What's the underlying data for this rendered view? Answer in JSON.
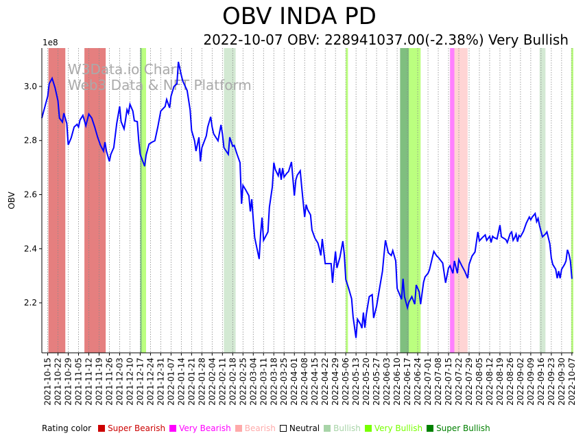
{
  "chart_data": {
    "type": "line",
    "title": "OBV INDA PD",
    "subtitle": "2022-10-07 OBV: 228941037.00(-2.38%) Very Bullish",
    "ylabel": "OBV",
    "y_multiplier_label": "1e8",
    "ylim": [
      2.015,
      3.142
    ],
    "y_ticks": [
      "2.2",
      "2.4",
      "2.6",
      "2.8",
      "3.0"
    ],
    "y_tick_values": [
      2.2,
      2.4,
      2.6,
      2.8,
      3.0
    ],
    "x_base_date": "2021-10-15",
    "x_day_range": [
      -4,
      358
    ],
    "x_ticks": [
      "2021-10-15",
      "2021-10-22",
      "2021-10-29",
      "2021-11-05",
      "2021-11-12",
      "2021-11-19",
      "2021-11-26",
      "2021-12-03",
      "2021-12-10",
      "2021-12-17",
      "2021-12-24",
      "2021-12-31",
      "2022-01-07",
      "2022-01-14",
      "2022-01-21",
      "2022-01-28",
      "2022-02-04",
      "2022-02-11",
      "2022-02-18",
      "2022-02-25",
      "2022-03-04",
      "2022-03-11",
      "2022-03-18",
      "2022-03-25",
      "2022-04-01",
      "2022-04-08",
      "2022-04-15",
      "2022-04-22",
      "2022-04-29",
      "2022-05-06",
      "2022-05-13",
      "2022-05-20",
      "2022-05-27",
      "2022-06-03",
      "2022-06-10",
      "2022-06-17",
      "2022-06-24",
      "2022-07-01",
      "2022-07-08",
      "2022-07-15",
      "2022-07-22",
      "2022-07-29",
      "2022-08-05",
      "2022-08-12",
      "2022-08-19",
      "2022-08-26",
      "2022-09-02",
      "2022-09-09",
      "2022-09-16",
      "2022-09-23",
      "2022-09-30",
      "2022-10-07"
    ],
    "grid": "vertical dotted",
    "series": [
      {
        "name": "OBV",
        "color": "#0000ff",
        "points": [
          [
            -4,
            2.883
          ],
          [
            0,
            2.964
          ],
          [
            1,
            3.01
          ],
          [
            3,
            3.03
          ],
          [
            5,
            2.995
          ],
          [
            7,
            2.947
          ],
          [
            8,
            2.883
          ],
          [
            10,
            2.868
          ],
          [
            11,
            2.901
          ],
          [
            13,
            2.863
          ],
          [
            14,
            2.784
          ],
          [
            16,
            2.81
          ],
          [
            18,
            2.85
          ],
          [
            20,
            2.86
          ],
          [
            21,
            2.85
          ],
          [
            22,
            2.876
          ],
          [
            24,
            2.893
          ],
          [
            26,
            2.855
          ],
          [
            28,
            2.898
          ],
          [
            30,
            2.883
          ],
          [
            32,
            2.85
          ],
          [
            34,
            2.812
          ],
          [
            36,
            2.782
          ],
          [
            38,
            2.761
          ],
          [
            39,
            2.794
          ],
          [
            40,
            2.761
          ],
          [
            42,
            2.723
          ],
          [
            43,
            2.749
          ],
          [
            45,
            2.774
          ],
          [
            47,
            2.863
          ],
          [
            49,
            2.926
          ],
          [
            50,
            2.87
          ],
          [
            52,
            2.843
          ],
          [
            53,
            2.876
          ],
          [
            54,
            2.914
          ],
          [
            55,
            2.901
          ],
          [
            56,
            2.934
          ],
          [
            58,
            2.909
          ],
          [
            59,
            2.873
          ],
          [
            61,
            2.87
          ],
          [
            62,
            2.799
          ],
          [
            63,
            2.749
          ],
          [
            66,
            2.705
          ],
          [
            67,
            2.746
          ],
          [
            69,
            2.787
          ],
          [
            71,
            2.794
          ],
          [
            73,
            2.799
          ],
          [
            75,
            2.85
          ],
          [
            77,
            2.909
          ],
          [
            80,
            2.926
          ],
          [
            81,
            2.952
          ],
          [
            83,
            2.921
          ],
          [
            84,
            2.964
          ],
          [
            86,
            3.0
          ],
          [
            88,
            3.01
          ],
          [
            89,
            3.091
          ],
          [
            91,
            3.041
          ],
          [
            92,
            3.02
          ],
          [
            95,
            2.985
          ],
          [
            97,
            2.914
          ],
          [
            98,
            2.837
          ],
          [
            100,
            2.799
          ],
          [
            101,
            2.761
          ],
          [
            103,
            2.812
          ],
          [
            104,
            2.723
          ],
          [
            105,
            2.774
          ],
          [
            108,
            2.817
          ],
          [
            109,
            2.85
          ],
          [
            111,
            2.888
          ],
          [
            112,
            2.85
          ],
          [
            113,
            2.825
          ],
          [
            116,
            2.799
          ],
          [
            118,
            2.858
          ],
          [
            119,
            2.825
          ],
          [
            120,
            2.774
          ],
          [
            123,
            2.749
          ],
          [
            124,
            2.812
          ],
          [
            126,
            2.779
          ],
          [
            127,
            2.782
          ],
          [
            129,
            2.749
          ],
          [
            131,
            2.718
          ],
          [
            132,
            2.566
          ],
          [
            133,
            2.634
          ],
          [
            135,
            2.616
          ],
          [
            137,
            2.596
          ],
          [
            138,
            2.538
          ],
          [
            139,
            2.583
          ],
          [
            140,
            2.507
          ],
          [
            141,
            2.441
          ],
          [
            144,
            2.362
          ],
          [
            145,
            2.456
          ],
          [
            146,
            2.515
          ],
          [
            147,
            2.431
          ],
          [
            150,
            2.462
          ],
          [
            151,
            2.553
          ],
          [
            153,
            2.629
          ],
          [
            154,
            2.718
          ],
          [
            155,
            2.693
          ],
          [
            157,
            2.67
          ],
          [
            158,
            2.698
          ],
          [
            159,
            2.655
          ],
          [
            160,
            2.698
          ],
          [
            161,
            2.665
          ],
          [
            163,
            2.68
          ],
          [
            164,
            2.685
          ],
          [
            166,
            2.721
          ],
          [
            168,
            2.596
          ],
          [
            169,
            2.655
          ],
          [
            170,
            2.672
          ],
          [
            172,
            2.688
          ],
          [
            173,
            2.629
          ],
          [
            175,
            2.517
          ],
          [
            176,
            2.563
          ],
          [
            177,
            2.545
          ],
          [
            179,
            2.525
          ],
          [
            180,
            2.469
          ],
          [
            182,
            2.439
          ],
          [
            184,
            2.421
          ],
          [
            185,
            2.401
          ],
          [
            186,
            2.375
          ],
          [
            187,
            2.436
          ],
          [
            189,
            2.345
          ],
          [
            191,
            2.345
          ],
          [
            193,
            2.345
          ],
          [
            194,
            2.274
          ],
          [
            195,
            2.337
          ],
          [
            196,
            2.39
          ],
          [
            197,
            2.329
          ],
          [
            199,
            2.368
          ],
          [
            201,
            2.428
          ],
          [
            202,
            2.38
          ],
          [
            203,
            2.286
          ],
          [
            205,
            2.253
          ],
          [
            207,
            2.215
          ],
          [
            208,
            2.147
          ],
          [
            210,
            2.07
          ],
          [
            211,
            2.139
          ],
          [
            213,
            2.121
          ],
          [
            214,
            2.106
          ],
          [
            215,
            2.164
          ],
          [
            216,
            2.108
          ],
          [
            217,
            2.157
          ],
          [
            219,
            2.223
          ],
          [
            221,
            2.23
          ],
          [
            222,
            2.144
          ],
          [
            224,
            2.187
          ],
          [
            226,
            2.253
          ],
          [
            228,
            2.317
          ],
          [
            229,
            2.375
          ],
          [
            230,
            2.431
          ],
          [
            232,
            2.385
          ],
          [
            234,
            2.375
          ],
          [
            235,
            2.393
          ],
          [
            237,
            2.355
          ],
          [
            238,
            2.253
          ],
          [
            241,
            2.213
          ],
          [
            242,
            2.289
          ],
          [
            243,
            2.223
          ],
          [
            245,
            2.182
          ],
          [
            246,
            2.202
          ],
          [
            248,
            2.223
          ],
          [
            250,
            2.195
          ],
          [
            251,
            2.266
          ],
          [
            253,
            2.241
          ],
          [
            254,
            2.195
          ],
          [
            256,
            2.276
          ],
          [
            257,
            2.296
          ],
          [
            259,
            2.309
          ],
          [
            260,
            2.322
          ],
          [
            262,
            2.368
          ],
          [
            263,
            2.39
          ],
          [
            265,
            2.373
          ],
          [
            266,
            2.368
          ],
          [
            269,
            2.347
          ],
          [
            271,
            2.274
          ],
          [
            273,
            2.329
          ],
          [
            274,
            2.337
          ],
          [
            276,
            2.309
          ],
          [
            277,
            2.355
          ],
          [
            279,
            2.309
          ],
          [
            280,
            2.36
          ],
          [
            282,
            2.337
          ],
          [
            284,
            2.317
          ],
          [
            286,
            2.291
          ],
          [
            287,
            2.342
          ],
          [
            289,
            2.373
          ],
          [
            291,
            2.388
          ],
          [
            293,
            2.462
          ],
          [
            294,
            2.429
          ],
          [
            296,
            2.441
          ],
          [
            298,
            2.451
          ],
          [
            299,
            2.431
          ],
          [
            301,
            2.446
          ],
          [
            302,
            2.423
          ],
          [
            303,
            2.446
          ],
          [
            304,
            2.441
          ],
          [
            306,
            2.436
          ],
          [
            308,
            2.487
          ],
          [
            309,
            2.444
          ],
          [
            312,
            2.434
          ],
          [
            313,
            2.423
          ],
          [
            315,
            2.456
          ],
          [
            316,
            2.462
          ],
          [
            317,
            2.431
          ],
          [
            318,
            2.441
          ],
          [
            319,
            2.454
          ],
          [
            320,
            2.426
          ],
          [
            321,
            2.449
          ],
          [
            322,
            2.444
          ],
          [
            324,
            2.464
          ],
          [
            326,
            2.495
          ],
          [
            328,
            2.517
          ],
          [
            329,
            2.507
          ],
          [
            330,
            2.517
          ],
          [
            332,
            2.53
          ],
          [
            333,
            2.5
          ],
          [
            334,
            2.512
          ],
          [
            335,
            2.484
          ],
          [
            337,
            2.444
          ],
          [
            339,
            2.454
          ],
          [
            340,
            2.462
          ],
          [
            342,
            2.418
          ],
          [
            343,
            2.365
          ],
          [
            344,
            2.342
          ],
          [
            346,
            2.324
          ],
          [
            347,
            2.291
          ],
          [
            348,
            2.317
          ],
          [
            349,
            2.291
          ],
          [
            350,
            2.324
          ],
          [
            352,
            2.342
          ],
          [
            353,
            2.355
          ],
          [
            354,
            2.396
          ],
          [
            355,
            2.38
          ],
          [
            356,
            2.355
          ],
          [
            357,
            2.289
          ]
        ]
      }
    ],
    "rating_bands": [
      {
        "rating": "Super Bearish",
        "from": 0.5,
        "to": 12
      },
      {
        "rating": "Super Bearish",
        "from": 25,
        "to": 39.5
      },
      {
        "rating": "Super Bullish",
        "from": 63,
        "to": 64
      },
      {
        "rating": "Very Bullish",
        "from": 64,
        "to": 67
      },
      {
        "rating": "Bullish",
        "from": 120,
        "to": 128
      },
      {
        "rating": "Very Bullish",
        "from": 203,
        "to": 204.5
      },
      {
        "rating": "Super Bullish",
        "from": 240,
        "to": 246
      },
      {
        "rating": "Very Bullish",
        "from": 246,
        "to": 254
      },
      {
        "rating": "Very Bearish",
        "from": 274,
        "to": 277
      },
      {
        "rating": "Bearish",
        "from": 277,
        "to": 286
      },
      {
        "rating": "Bullish",
        "from": 335,
        "to": 339
      },
      {
        "rating": "Very Bullish",
        "from": 356.5,
        "to": 358
      }
    ],
    "watermark": [
      "W3Data.io Chart",
      "Web3 Data & NFT Platform"
    ],
    "legend": {
      "label": "Rating color",
      "placement": "bottom",
      "items": [
        {
          "name": "Super Bearish",
          "color": "#cc0000",
          "band": "rgba(204,0,0,0.5)"
        },
        {
          "name": "Very Bearish",
          "color": "#ff00ff",
          "band": "rgba(255,0,255,0.5)"
        },
        {
          "name": "Bearish",
          "color": "#ffaaaa",
          "band": "rgba(255,170,170,0.5)"
        },
        {
          "name": "Neutral",
          "color": "#ffffff",
          "band": "rgba(255,255,255,0)"
        },
        {
          "name": "Bullish",
          "color": "#a8d4a8",
          "band": "rgba(168,212,168,0.5)"
        },
        {
          "name": "Very Bullish",
          "color": "#77ff00",
          "band": "rgba(119,255,0,0.5)"
        },
        {
          "name": "Super Bullish",
          "color": "#008000",
          "band": "rgba(0,128,0,0.5)"
        }
      ]
    }
  }
}
